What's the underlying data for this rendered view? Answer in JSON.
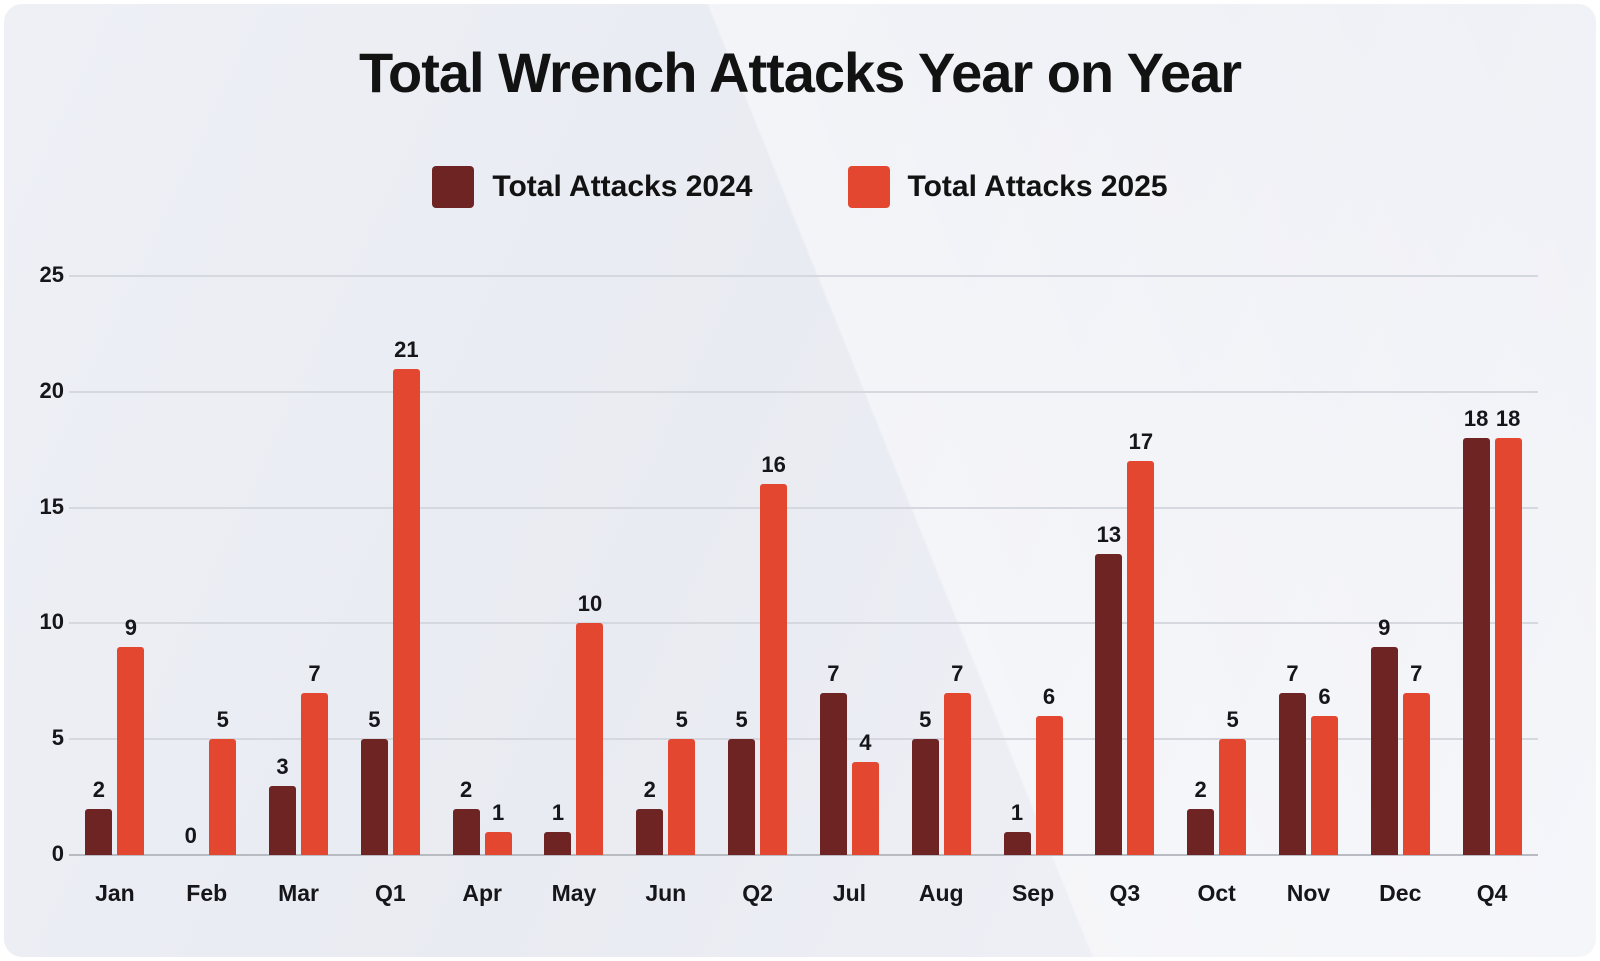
{
  "title": "Total Wrench Attacks Year on Year",
  "legend": [
    {
      "label": "Total Attacks 2024",
      "color": "#6e2423"
    },
    {
      "label": "Total Attacks 2025",
      "color": "#e4472f"
    }
  ],
  "colors": {
    "series_2024": "#6e2423",
    "series_2025": "#e4472f",
    "background": "#edeff5",
    "gridline": "#d6d8df",
    "text": "#121212"
  },
  "chart_data": {
    "type": "bar",
    "title": "Total Wrench Attacks Year on Year",
    "categories": [
      "Jan",
      "Feb",
      "Mar",
      "Q1",
      "Apr",
      "May",
      "Jun",
      "Q2",
      "Jul",
      "Aug",
      "Sep",
      "Q3",
      "Oct",
      "Nov",
      "Dec",
      "Q4"
    ],
    "series": [
      {
        "name": "Total Attacks 2024",
        "color": "#6e2423",
        "values": [
          2,
          0,
          3,
          5,
          2,
          1,
          2,
          5,
          7,
          5,
          1,
          13,
          2,
          7,
          9,
          18
        ]
      },
      {
        "name": "Total Attacks 2025",
        "color": "#e4472f",
        "values": [
          9,
          5,
          7,
          21,
          1,
          10,
          5,
          16,
          4,
          7,
          6,
          17,
          5,
          6,
          7,
          18
        ]
      }
    ],
    "xlabel": "",
    "ylabel": "",
    "ylim": [
      0,
      25
    ],
    "yticks": [
      0,
      5,
      10,
      15,
      20,
      25
    ],
    "grid": true,
    "legend_position": "top",
    "value_labels": true
  }
}
